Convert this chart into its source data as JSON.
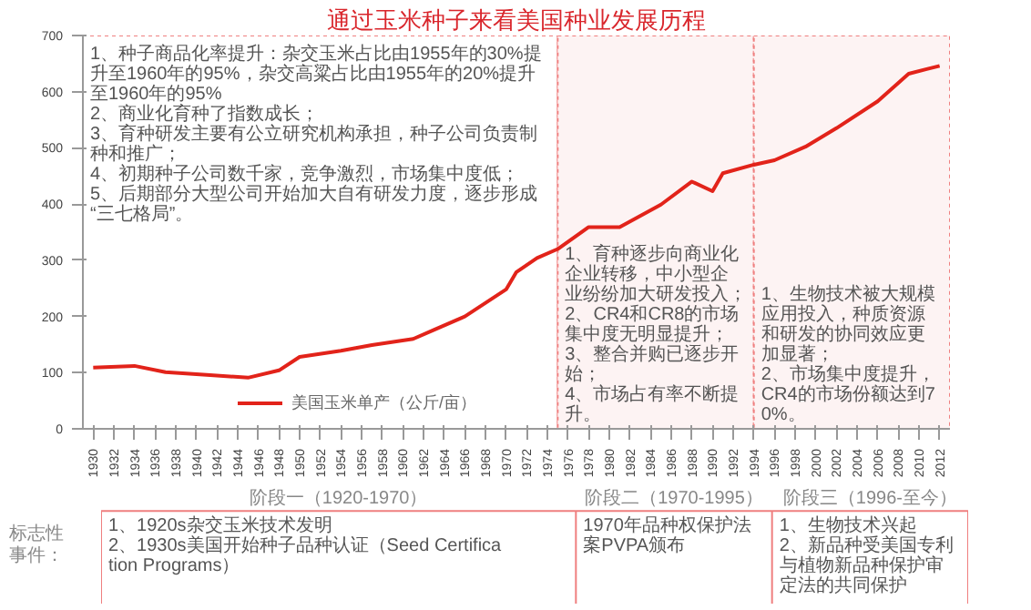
{
  "chart_data": {
    "type": "line",
    "title": "通过玉米种子来看美国种业发展历程",
    "x": [
      1930,
      1934,
      1937,
      1941,
      1945,
      1948,
      1950,
      1954,
      1957,
      1961,
      1963,
      1966,
      1970,
      1971,
      1973,
      1975,
      1978,
      1981,
      1985,
      1988,
      1990,
      1991,
      1994,
      1996,
      1999,
      2002,
      2006,
      2009,
      2012
    ],
    "series": [
      {
        "name": "美国玉米单产（公斤/亩）",
        "color": "#e2231a",
        "values": [
          109,
          112,
          101,
          96,
          91,
          104,
          128,
          139,
          149,
          160,
          176,
          200,
          248,
          279,
          304,
          320,
          359,
          359,
          399,
          440,
          423,
          455,
          470,
          478,
          502,
          535,
          583,
          632,
          646
        ]
      }
    ],
    "xlim": [
      1929,
      2013
    ],
    "xticks": [
      1930,
      1932,
      1934,
      1936,
      1938,
      1940,
      1942,
      1944,
      1946,
      1948,
      1950,
      1952,
      1954,
      1956,
      1958,
      1960,
      1962,
      1964,
      1966,
      1968,
      1970,
      1972,
      1974,
      1976,
      1978,
      1980,
      1982,
      1984,
      1986,
      1988,
      1990,
      1992,
      1994,
      1996,
      1998,
      2000,
      2002,
      2004,
      2006,
      2008,
      2010,
      2012
    ],
    "ylim": [
      0,
      700
    ],
    "yticks": [
      0,
      100,
      200,
      300,
      400,
      500,
      600,
      700
    ],
    "legend": "bottom",
    "bands": [
      {
        "axis": "x",
        "from": 1929,
        "to": 1975,
        "color": "#ffffff",
        "label": "1、种子商品化率提升：杂交玉米占比由1955年的30%提升至1960年的95%，杂交高粱占比由1955年的20%提升至1960年的95%\n2、商业化育种了指数成长；\n3、育种研发主要有公立研究机构承担，种子公司负责制种和推广；\n4、初期种子公司数千家，竞争激烈，市场集中度低；\n5、后期部分大型公司开始加大自有研发力度，逐步形成“三七格局”。"
      },
      {
        "axis": "x",
        "from": 1975,
        "to": 1994,
        "color": "#fdf3f3",
        "label": "1、育种逐步向商业化企业转移，中小型企业纷纷加大研发投入；\n2、CR4和CR8的市场集中度无明显提升；\n3、整合并购已逐步开始；\n4、市场占有率不断提升。"
      },
      {
        "axis": "x",
        "from": 1994,
        "to": 2013,
        "color": "#fdf3f3",
        "label": "1、生物技术被大规模应用投入，种质资源和研发的协同效应更加显著；\n2、市场集中度提升，CR4的市场份额达到70%。"
      }
    ],
    "annotations": [
      "标志性事件：",
      "阶段一（1920-1970）",
      "1、1920s杂交玉米技术发明\n2、1930s美国开始种子品种认证（Seed Certification Programs）",
      "阶段二（1970-1995）",
      "1970年品种权保护法案PVPA颁布",
      "阶段三（1996-至今）",
      "1、生物技术兴起\n2、新品种受美国专利与植物新品种保护审定法的共同保护"
    ]
  }
}
